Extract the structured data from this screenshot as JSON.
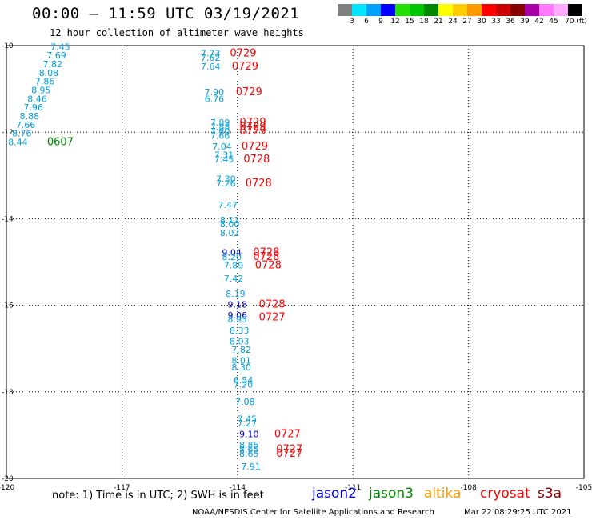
{
  "title": "00:00 – 11:59 UTC 03/19/2021",
  "subtitle": "12 hour collection of altimeter wave heights",
  "colorbar": {
    "colors": [
      "#808080",
      "#00e5ff",
      "#00a0ff",
      "#0000ff",
      "#22e000",
      "#00c800",
      "#008800",
      "#ffff00",
      "#ffcc00",
      "#ff9900",
      "#ff0000",
      "#cc0000",
      "#880000",
      "#aa00aa",
      "#ff77ff",
      "#ffaaff",
      "#000000"
    ],
    "labels": [
      "3",
      "6",
      "9",
      "12",
      "15",
      "18",
      "21",
      "24",
      "27",
      "30",
      "33",
      "36",
      "39",
      "42",
      "45",
      "70 (ft)"
    ]
  },
  "axes": {
    "lon_range": [
      -120,
      -105
    ],
    "lat_range": [
      -20,
      -10
    ],
    "x_ticks": [
      "-120",
      "-117",
      "-114",
      "-111",
      "-108",
      "-105"
    ],
    "y_ticks": [
      "-10",
      "-12",
      "-14",
      "-16",
      "-18",
      "-20"
    ]
  },
  "satellite_colors": {
    "jason2": "#0000cc",
    "jason3": "#008800",
    "altika": "#ff9900",
    "cryosat": "#ff0000",
    "s3a": "#880000",
    "value": "#00a0e0"
  },
  "track1_values": [
    {
      "lon": -118.6,
      "lat": -10.1,
      "v": "7.45"
    },
    {
      "lon": -118.7,
      "lat": -10.3,
      "v": "7.69"
    },
    {
      "lon": -118.8,
      "lat": -10.5,
      "v": "7.82"
    },
    {
      "lon": -118.9,
      "lat": -10.7,
      "v": "8.08"
    },
    {
      "lon": -119.0,
      "lat": -10.9,
      "v": "7.86"
    },
    {
      "lon": -119.1,
      "lat": -11.1,
      "v": "8.95"
    },
    {
      "lon": -119.2,
      "lat": -11.3,
      "v": "8.46"
    },
    {
      "lon": -119.3,
      "lat": -11.5,
      "v": "7.96"
    },
    {
      "lon": -119.4,
      "lat": -11.7,
      "v": "8.88"
    },
    {
      "lon": -119.5,
      "lat": -11.9,
      "v": "7.66"
    },
    {
      "lon": -119.6,
      "lat": -12.1,
      "v": "8.76"
    },
    {
      "lon": -119.7,
      "lat": -12.3,
      "v": "8.44"
    }
  ],
  "track1_time": {
    "lon": -118.6,
    "lat": -12.3,
    "t": "0607",
    "sat": "jason3"
  },
  "track2_values": [
    {
      "lon": -114.7,
      "lat": -10.25,
      "v": "7.73"
    },
    {
      "lon": -114.7,
      "lat": -10.35,
      "v": "7.62"
    },
    {
      "lon": -114.7,
      "lat": -10.55,
      "v": "7.64"
    },
    {
      "lon": -114.6,
      "lat": -11.15,
      "v": "7.90"
    },
    {
      "lon": -114.6,
      "lat": -11.3,
      "v": "6.76"
    },
    {
      "lon": -114.45,
      "lat": -11.85,
      "v": "7.89"
    },
    {
      "lon": -114.45,
      "lat": -11.95,
      "v": "7.88"
    },
    {
      "lon": -114.45,
      "lat": -12.05,
      "v": "7.60"
    },
    {
      "lon": -114.45,
      "lat": -12.15,
      "v": "7.66"
    },
    {
      "lon": -114.4,
      "lat": -12.4,
      "v": "7.04"
    },
    {
      "lon": -114.35,
      "lat": -12.6,
      "v": "7.31"
    },
    {
      "lon": -114.35,
      "lat": -12.7,
      "v": "7.45"
    },
    {
      "lon": -114.3,
      "lat": -13.15,
      "v": "7.30"
    },
    {
      "lon": -114.3,
      "lat": -13.25,
      "v": "7.26"
    },
    {
      "lon": -114.25,
      "lat": -13.75,
      "v": "7.47"
    },
    {
      "lon": -114.2,
      "lat": -14.1,
      "v": "8.11"
    },
    {
      "lon": -114.2,
      "lat": -14.2,
      "v": "8.00"
    },
    {
      "lon": -114.2,
      "lat": -14.4,
      "v": "8.02"
    },
    {
      "lon": -114.15,
      "lat": -14.85,
      "v": "9.04",
      "sat": "jason2"
    },
    {
      "lon": -114.15,
      "lat": -14.95,
      "v": "8.20"
    },
    {
      "lon": -114.1,
      "lat": -15.15,
      "v": "7.89"
    },
    {
      "lon": -114.1,
      "lat": -15.45,
      "v": "7.42"
    },
    {
      "lon": -114.05,
      "lat": -15.8,
      "v": "8.19"
    },
    {
      "lon": -114.0,
      "lat": -16.05,
      "v": "9.18",
      "sat": "jason2"
    },
    {
      "lon": -114.0,
      "lat": -16.3,
      "v": "9.06",
      "sat": "jason2"
    },
    {
      "lon": -114.0,
      "lat": -16.4,
      "v": "8.95"
    },
    {
      "lon": -113.95,
      "lat": -16.65,
      "v": "8.33"
    },
    {
      "lon": -113.95,
      "lat": -16.9,
      "v": "8.03"
    },
    {
      "lon": -113.9,
      "lat": -17.1,
      "v": "7.82"
    },
    {
      "lon": -113.9,
      "lat": -17.35,
      "v": "8.01"
    },
    {
      "lon": -113.9,
      "lat": -17.5,
      "v": "8.30"
    },
    {
      "lon": -113.85,
      "lat": -17.8,
      "v": "6.54"
    },
    {
      "lon": -113.85,
      "lat": -17.9,
      "v": "7.20"
    },
    {
      "lon": -113.8,
      "lat": -18.3,
      "v": "7.08"
    },
    {
      "lon": -113.75,
      "lat": -18.7,
      "v": "7.45"
    },
    {
      "lon": -113.75,
      "lat": -18.8,
      "v": "7.27"
    },
    {
      "lon": -113.7,
      "lat": -19.05,
      "v": "9.10",
      "sat": "jason2"
    },
    {
      "lon": -113.7,
      "lat": -19.3,
      "v": "8.85"
    },
    {
      "lon": -113.7,
      "lat": -19.4,
      "v": "8.65"
    },
    {
      "lon": -113.7,
      "lat": -19.5,
      "v": "8.65"
    },
    {
      "lon": -113.65,
      "lat": -19.8,
      "v": "7.91"
    }
  ],
  "track2_times": [
    {
      "lon": -113.85,
      "lat": -10.25,
      "t": "0729"
    },
    {
      "lon": -113.8,
      "lat": -10.55,
      "t": "0729"
    },
    {
      "lon": -113.7,
      "lat": -11.15,
      "t": "0729"
    },
    {
      "lon": -113.6,
      "lat": -11.85,
      "t": "0729"
    },
    {
      "lon": -113.6,
      "lat": -11.95,
      "t": "0729"
    },
    {
      "lon": -113.6,
      "lat": -12.05,
      "t": "0729"
    },
    {
      "lon": -113.55,
      "lat": -12.4,
      "t": "0729"
    },
    {
      "lon": -113.5,
      "lat": -12.7,
      "t": "0728"
    },
    {
      "lon": -113.45,
      "lat": -13.25,
      "t": "0728"
    },
    {
      "lon": -113.25,
      "lat": -14.85,
      "t": "0728"
    },
    {
      "lon": -113.25,
      "lat": -14.95,
      "t": "0728"
    },
    {
      "lon": -113.2,
      "lat": -15.15,
      "t": "0728"
    },
    {
      "lon": -113.1,
      "lat": -16.05,
      "t": "0728"
    },
    {
      "lon": -113.1,
      "lat": -16.35,
      "t": "0727"
    },
    {
      "lon": -112.7,
      "lat": -19.05,
      "t": "0727"
    },
    {
      "lon": -112.65,
      "lat": -19.4,
      "t": "0727"
    },
    {
      "lon": -112.65,
      "lat": -19.5,
      "t": "0727"
    }
  ],
  "footer": {
    "note": "note:  1) Time is in UTC;  2) SWH is in feet",
    "legend": [
      {
        "name": "jason2",
        "color": "#0000cc"
      },
      {
        "name": "jason3",
        "color": "#008800"
      },
      {
        "name": "altika",
        "color": "#ff9900"
      },
      {
        "name": "cryosat",
        "color": "#ff0000"
      },
      {
        "name": "s3a",
        "color": "#880000"
      }
    ],
    "credits": "NOAA/NESDIS Center for Satellite Applications and Research",
    "timestamp": "Mar 22 08:29:25 UTC 2021"
  }
}
